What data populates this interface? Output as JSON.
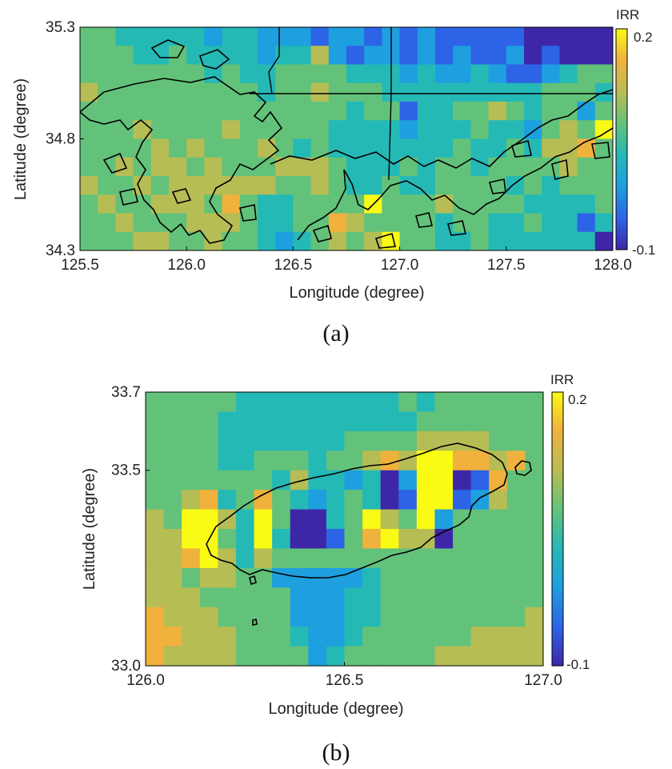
{
  "chart_data": [
    {
      "type": "heatmap",
      "caption": "(a)",
      "xlabel": "Longitude (degree)",
      "ylabel": "Latitude (degree)",
      "xlim": [
        125.5,
        128.0
      ],
      "ylim": [
        34.3,
        35.3
      ],
      "xticks": [
        "125.5",
        "126.0",
        "126.5",
        "127.0",
        "127.5",
        "128.0"
      ],
      "yticks": [
        "35.3",
        "34.8",
        "34.3"
      ],
      "colorbar": {
        "label": "IRR",
        "min_label": "0.2",
        "max_label": "-0.1",
        "range": [
          -0.1,
          0.2
        ]
      },
      "colormap": [
        "#3e26a8",
        "#2d63e6",
        "#1e9fdf",
        "#25b9b6",
        "#63c27a",
        "#b6bd54",
        "#f0b13d",
        "#f9fb14"
      ],
      "values": [
        [
          0.07,
          0.08,
          0.04,
          0.02,
          0.03,
          0.02,
          0.01,
          0.0,
          0.02,
          0.01,
          -0.01,
          0.0,
          -0.02,
          -0.05,
          -0.03,
          -0.01,
          -0.04,
          -0.02,
          -0.05,
          -0.03,
          -0.06,
          -0.04,
          -0.05,
          -0.07,
          -0.06,
          -0.09,
          -0.08,
          -0.08,
          -0.09,
          -0.09
        ],
        [
          0.09,
          0.06,
          0.05,
          0.03,
          0.04,
          0.06,
          0.02,
          0.01,
          0.03,
          0.02,
          0.0,
          0.01,
          0.04,
          0.11,
          -0.02,
          -0.05,
          -0.01,
          -0.03,
          -0.04,
          -0.02,
          -0.04,
          -0.03,
          -0.06,
          -0.05,
          -0.03,
          -0.08,
          -0.06,
          -0.08,
          -0.09,
          -0.09
        ],
        [
          0.08,
          0.09,
          0.07,
          0.06,
          0.05,
          0.08,
          0.06,
          0.04,
          0.05,
          0.04,
          0.03,
          0.05,
          0.07,
          0.09,
          0.05,
          0.02,
          0.03,
          0.01,
          0.0,
          0.01,
          -0.02,
          0.0,
          0.01,
          -0.02,
          -0.04,
          -0.05,
          -0.03,
          0.04,
          0.09,
          0.07
        ],
        [
          0.1,
          0.09,
          0.08,
          0.07,
          0.06,
          0.07,
          0.08,
          0.06,
          0.05,
          0.05,
          0.04,
          0.06,
          0.08,
          0.1,
          0.06,
          0.05,
          0.06,
          0.04,
          0.03,
          0.04,
          0.02,
          0.03,
          0.04,
          0.02,
          0.01,
          0.03,
          0.05,
          0.06,
          0.05,
          0.04
        ],
        [
          0.09,
          0.08,
          0.09,
          0.08,
          0.07,
          0.09,
          0.08,
          0.07,
          0.06,
          0.07,
          0.05,
          0.05,
          0.07,
          0.09,
          0.05,
          0.03,
          0.05,
          0.06,
          -0.06,
          0.04,
          0.02,
          0.05,
          0.06,
          0.13,
          0.05,
          0.02,
          0.06,
          0.08,
          -0.03,
          0.06
        ],
        [
          0.08,
          0.08,
          0.09,
          0.1,
          0.07,
          0.08,
          0.09,
          0.08,
          0.1,
          0.08,
          0.06,
          0.05,
          0.06,
          0.08,
          0.04,
          0.02,
          0.01,
          0.03,
          0.0,
          0.02,
          0.03,
          0.04,
          0.05,
          0.02,
          0.01,
          0.0,
          0.05,
          0.12,
          0.08,
          0.19
        ],
        [
          0.07,
          0.09,
          0.08,
          0.09,
          0.1,
          0.09,
          0.1,
          0.09,
          0.08,
          0.09,
          0.11,
          0.09,
          0.04,
          0.06,
          0.03,
          0.01,
          0.02,
          0.04,
          0.03,
          0.02,
          0.04,
          0.05,
          0.03,
          0.04,
          0.06,
          0.03,
          0.13,
          0.12,
          0.17,
          0.08
        ],
        [
          0.09,
          0.08,
          0.1,
          0.09,
          0.11,
          0.1,
          0.08,
          0.11,
          0.09,
          0.08,
          0.09,
          0.1,
          0.1,
          0.12,
          0.07,
          0.02,
          0.04,
          0.03,
          0.05,
          0.04,
          0.05,
          0.06,
          0.04,
          0.05,
          0.07,
          0.06,
          0.08,
          0.1,
          0.06,
          0.07
        ],
        [
          0.1,
          0.09,
          0.08,
          0.1,
          0.09,
          0.11,
          0.12,
          0.1,
          0.1,
          0.11,
          0.13,
          0.08,
          0.09,
          0.11,
          0.06,
          0.04,
          0.03,
          0.05,
          0.04,
          0.03,
          0.06,
          0.05,
          0.07,
          0.06,
          0.04,
          0.05,
          0.03,
          0.05,
          0.06,
          0.05
        ],
        [
          0.08,
          0.1,
          0.09,
          0.08,
          0.1,
          0.12,
          0.11,
          0.09,
          0.14,
          0.06,
          0.03,
          0.04,
          0.07,
          0.05,
          0.06,
          0.07,
          0.19,
          0.05,
          0.09,
          0.07,
          0.12,
          0.06,
          0.05,
          0.07,
          0.05,
          0.04,
          0.02,
          0.04,
          0.03,
          0.05
        ],
        [
          0.09,
          0.08,
          0.1,
          0.09,
          0.08,
          0.09,
          0.1,
          0.11,
          0.12,
          0.08,
          0.04,
          0.03,
          0.06,
          0.08,
          0.14,
          0.1,
          0.07,
          0.09,
          0.06,
          0.08,
          0.04,
          0.05,
          0.06,
          0.04,
          0.03,
          0.05,
          0.04,
          0.02,
          -0.07,
          0.04
        ],
        [
          0.07,
          0.09,
          0.08,
          0.1,
          0.12,
          0.09,
          0.08,
          0.1,
          0.09,
          0.07,
          0.03,
          -0.03,
          0.02,
          0.05,
          0.13,
          0.06,
          0.12,
          0.18,
          0.05,
          0.07,
          0.03,
          0.04,
          0.05,
          0.03,
          0.04,
          0.02,
          0.03,
          0.01,
          0.03,
          -0.09
        ]
      ]
    },
    {
      "type": "heatmap",
      "caption": "(b)",
      "xlabel": "Longitude (degree)",
      "ylabel": "Latitude (degree)",
      "xlim": [
        126.0,
        127.0
      ],
      "ylim": [
        33.0,
        33.7
      ],
      "xticks": [
        "126.0",
        "126.5",
        "127.0"
      ],
      "yticks": [
        "33.7",
        "33.5",
        "33.0"
      ],
      "colorbar": {
        "label": "IRR",
        "min_label": "0.2",
        "max_label": "-0.1",
        "range": [
          -0.1,
          0.2
        ]
      },
      "colormap": [
        "#3e26a8",
        "#2d63e6",
        "#1e9fdf",
        "#25b9b6",
        "#63c27a",
        "#b6bd54",
        "#f0b13d",
        "#f9fb14"
      ],
      "values": [
        [
          0.09,
          0.08,
          0.07,
          0.06,
          0.05,
          0.04,
          0.03,
          0.03,
          0.02,
          0.02,
          0.02,
          0.02,
          0.03,
          0.04,
          0.05,
          0.04,
          0.05,
          0.06,
          0.05,
          0.06,
          0.07,
          0.08
        ],
        [
          0.09,
          0.08,
          0.07,
          0.05,
          0.04,
          0.03,
          0.02,
          0.02,
          0.01,
          0.01,
          0.02,
          0.02,
          0.03,
          0.04,
          0.04,
          0.05,
          0.06,
          0.07,
          0.07,
          0.08,
          0.08,
          0.09
        ],
        [
          0.08,
          0.07,
          0.06,
          0.05,
          0.04,
          0.03,
          0.03,
          0.02,
          0.01,
          0.02,
          0.03,
          0.05,
          0.06,
          0.08,
          0.09,
          0.11,
          0.13,
          0.12,
          0.1,
          0.09,
          0.08,
          0.08
        ],
        [
          0.07,
          0.06,
          0.06,
          0.05,
          0.04,
          0.03,
          0.05,
          0.07,
          0.06,
          0.04,
          0.05,
          0.08,
          0.1,
          0.14,
          0.13,
          0.18,
          0.19,
          0.14,
          0.15,
          0.13,
          0.17,
          0.07
        ],
        [
          0.08,
          0.07,
          0.06,
          0.05,
          0.06,
          0.08,
          0.05,
          0.04,
          0.1,
          0.02,
          0.01,
          0.0,
          0.03,
          -0.08,
          -0.02,
          0.19,
          0.19,
          -0.09,
          -0.07,
          0.14,
          0.09,
          0.08
        ],
        [
          0.09,
          0.08,
          0.12,
          0.14,
          0.03,
          0.08,
          0.16,
          0.06,
          0.02,
          0.0,
          0.01,
          0.05,
          0.04,
          -0.09,
          -0.04,
          0.2,
          0.19,
          -0.05,
          -0.03,
          0.1,
          0.06,
          0.07
        ],
        [
          0.1,
          0.09,
          0.18,
          0.19,
          0.12,
          0.03,
          0.19,
          0.05,
          -0.08,
          -0.09,
          0.02,
          0.08,
          0.19,
          0.1,
          0.05,
          0.19,
          -0.03,
          0.07,
          0.06,
          0.05,
          0.06,
          0.07
        ],
        [
          0.1,
          0.1,
          0.19,
          0.2,
          0.05,
          0.02,
          0.18,
          0.04,
          -0.09,
          -0.08,
          -0.04,
          0.08,
          0.14,
          0.18,
          0.12,
          0.11,
          -0.08,
          0.06,
          0.05,
          0.05,
          0.06,
          0.06
        ],
        [
          0.11,
          0.1,
          0.16,
          0.19,
          0.13,
          0.04,
          0.12,
          0.08,
          0.06,
          0.05,
          0.06,
          0.07,
          0.07,
          0.08,
          0.07,
          0.07,
          0.06,
          0.06,
          0.05,
          0.06,
          0.07,
          0.07
        ],
        [
          0.11,
          0.1,
          0.09,
          0.1,
          0.12,
          0.08,
          0.07,
          0.0,
          -0.02,
          -0.02,
          -0.01,
          -0.01,
          0.03,
          0.05,
          0.06,
          0.06,
          0.05,
          0.05,
          0.06,
          0.07,
          0.07,
          0.08
        ],
        [
          0.12,
          0.11,
          0.1,
          0.09,
          0.08,
          0.07,
          0.06,
          0.05,
          -0.02,
          -0.02,
          -0.03,
          0.01,
          0.03,
          0.05,
          0.06,
          0.07,
          0.06,
          0.07,
          0.08,
          0.08,
          0.09,
          0.09
        ],
        [
          0.14,
          0.13,
          0.11,
          0.1,
          0.09,
          0.08,
          0.07,
          0.06,
          -0.01,
          -0.02,
          -0.02,
          0.02,
          0.04,
          0.06,
          0.07,
          0.08,
          0.07,
          0.08,
          0.09,
          0.09,
          0.09,
          0.1
        ],
        [
          0.15,
          0.14,
          0.12,
          0.11,
          0.1,
          0.09,
          0.08,
          0.07,
          0.03,
          -0.02,
          -0.01,
          0.03,
          0.05,
          0.07,
          0.08,
          0.09,
          0.08,
          0.09,
          0.1,
          0.1,
          0.1,
          0.1
        ],
        [
          0.14,
          0.13,
          0.12,
          0.11,
          0.1,
          0.09,
          0.08,
          0.08,
          0.05,
          0.0,
          0.03,
          0.06,
          0.07,
          0.08,
          0.09,
          0.09,
          0.1,
          0.1,
          0.1,
          0.11,
          0.11,
          0.11
        ]
      ]
    }
  ]
}
